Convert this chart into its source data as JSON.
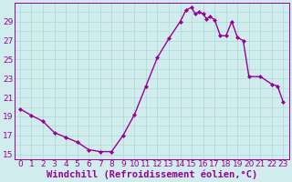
{
  "x": [
    0,
    1,
    2,
    3,
    4,
    5,
    6,
    7,
    8,
    9,
    10,
    11,
    12,
    13,
    14,
    14.5,
    15,
    15.3,
    15.6,
    16,
    16.3,
    16.6,
    17,
    17.5,
    18,
    18.5,
    19,
    19.5,
    20,
    21,
    22,
    22.5,
    23
  ],
  "y": [
    19.8,
    19.1,
    18.5,
    17.3,
    16.8,
    16.3,
    15.5,
    15.3,
    15.3,
    17.0,
    19.2,
    22.2,
    25.2,
    27.2,
    29.0,
    30.2,
    30.5,
    29.8,
    30.0,
    29.8,
    29.3,
    29.5,
    29.2,
    27.5,
    27.5,
    29.0,
    27.3,
    27.0,
    23.2,
    23.2,
    22.4,
    22.2,
    20.5
  ],
  "line_color": "#990099",
  "marker": "D",
  "marker_size": 2.0,
  "xlabel": "Windchill (Refroidissement éolien,°C)",
  "xlabel_color": "#990099",
  "ylabel_ticks": [
    15,
    17,
    19,
    21,
    23,
    25,
    27,
    29
  ],
  "xticks": [
    0,
    1,
    2,
    3,
    4,
    5,
    6,
    7,
    8,
    9,
    10,
    11,
    12,
    13,
    14,
    15,
    16,
    17,
    18,
    19,
    20,
    21,
    22,
    23
  ],
  "ylim": [
    14.5,
    31.0
  ],
  "xlim": [
    -0.5,
    23.5
  ],
  "grid_color": "#a8d8d8",
  "bg_color": "#d0ecec",
  "tick_color": "#990099",
  "tick_fontsize": 6.5,
  "xlabel_fontsize": 7.5,
  "linewidth": 1.0
}
